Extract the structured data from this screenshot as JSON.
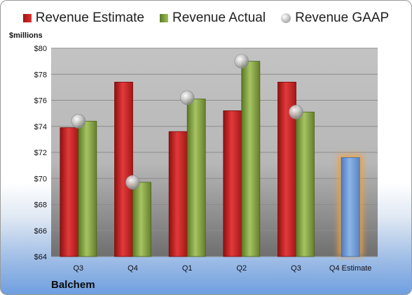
{
  "legend": {
    "estimate": "Revenue Estimate",
    "actual": "Revenue Actual",
    "gaap": "Revenue GAAP"
  },
  "unit_label": "$millions",
  "company": "Balchem",
  "colors": {
    "estimate": "#c81e1e",
    "actual": "#7f9c3a",
    "gaap": "#b8b8b8",
    "forecast": "#6b97d1",
    "forecast_glow": "#f0a040"
  },
  "chart_data": {
    "type": "bar",
    "categories": [
      "Q3",
      "Q4",
      "Q1",
      "Q2",
      "Q3",
      "Q4 Estimate"
    ],
    "series": [
      {
        "name": "Revenue Estimate",
        "values": [
          73.9,
          77.4,
          73.6,
          75.2,
          77.4,
          71.6
        ]
      },
      {
        "name": "Revenue Actual",
        "values": [
          74.4,
          69.7,
          76.1,
          79.0,
          75.1,
          null
        ]
      },
      {
        "name": "Revenue GAAP",
        "values": [
          74.4,
          69.7,
          76.2,
          79.0,
          75.1,
          null
        ]
      }
    ],
    "ylim": [
      64,
      80
    ],
    "yticks": [
      64,
      66,
      68,
      70,
      72,
      74,
      76,
      78,
      80
    ],
    "ytick_labels": [
      "$64",
      "$66",
      "$68",
      "$70",
      "$72",
      "$74",
      "$76",
      "$78",
      "$80"
    ],
    "ylabel": "$millions",
    "legend_position": "top",
    "grid": true
  }
}
